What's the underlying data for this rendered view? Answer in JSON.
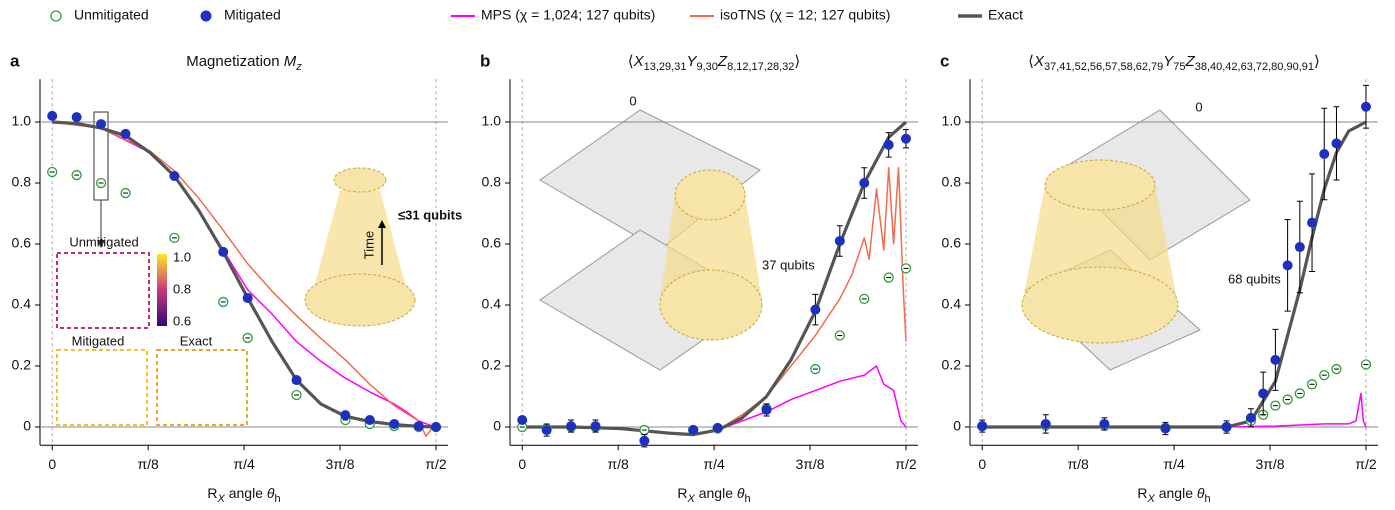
{
  "chart_data": [
    {
      "type": "line",
      "panel": "a",
      "title": [
        {
          "text": "Magnetization "
        },
        {
          "text": "M",
          "italic": true
        },
        {
          "text": "z",
          "sub": true,
          "italic": true
        }
      ],
      "xlabel": [
        {
          "text": "R"
        },
        {
          "text": "X",
          "sub": true,
          "italic": true
        },
        {
          "text": " angle "
        },
        {
          "text": "θ",
          "italic": true
        },
        {
          "text": "h",
          "sub": true
        }
      ],
      "xlim": [
        -0.05,
        1.62
      ],
      "ylim": [
        -0.06,
        1.14
      ],
      "xticks": [
        0,
        {
          "value": 0.3927,
          "label": "π/8"
        },
        {
          "value": 0.7854,
          "label": "π/4"
        },
        {
          "value": 1.1781,
          "label": "3π/8"
        },
        {
          "value": 1.5708,
          "label": "π/2"
        }
      ],
      "yticks": [
        0,
        0.2,
        0.4,
        0.6,
        0.8,
        {
          "value": 1,
          "label": "1.0"
        }
      ],
      "reference_lines": true,
      "grid": false,
      "annotations": [
        "≤31 qubits",
        "Time",
        "Unmitigated",
        "Mitigated",
        "Exact",
        "1.0",
        "0.8",
        "0.6"
      ],
      "series": [
        {
          "name": "Unmitigated",
          "color": "#2e9e3a",
          "marker": "open-circle",
          "x": [
            0,
            0.1,
            0.2,
            0.3,
            0.5,
            0.7,
            0.8,
            1.0,
            1.2,
            1.3,
            1.4,
            1.5,
            1.5708
          ],
          "values": [
            0.836,
            0.826,
            0.8,
            0.767,
            0.62,
            0.41,
            0.292,
            0.105,
            0.023,
            0.01,
            0.003,
            0,
            0
          ]
        },
        {
          "name": "Mitigated",
          "color": "#1f2fbf",
          "marker": "filled-circle",
          "x": [
            0,
            0.1,
            0.2,
            0.3,
            0.5,
            0.7,
            0.8,
            1.0,
            1.2,
            1.3,
            1.4,
            1.5,
            1.5708
          ],
          "values": [
            1.02,
            1.016,
            0.993,
            0.961,
            0.823,
            0.574,
            0.423,
            0.154,
            0.039,
            0.023,
            0.01,
            0.003,
            0
          ]
        },
        {
          "name": "MPS (χ = 1,024; 127 qubits)",
          "color": "#ff00ff",
          "marker": "line",
          "x": [
            0,
            0.2,
            0.4,
            0.5,
            0.6,
            0.7,
            0.8,
            0.9,
            1.0,
            1.1,
            1.2,
            1.3,
            1.4,
            1.45,
            1.5,
            1.55
          ],
          "values": [
            1,
            0.98,
            0.9,
            0.823,
            0.71,
            0.58,
            0.45,
            0.37,
            0.28,
            0.215,
            0.16,
            0.115,
            0.075,
            0.05,
            0.02,
            0.005
          ]
        },
        {
          "name": "isoTNS (χ = 12; 127 qubits)",
          "color": "#f26b4f",
          "marker": "line",
          "x": [
            0,
            0.2,
            0.4,
            0.5,
            0.6,
            0.7,
            0.8,
            0.9,
            1.0,
            1.1,
            1.2,
            1.3,
            1.4,
            1.45,
            1.5,
            1.53,
            1.56
          ],
          "values": [
            1,
            0.98,
            0.905,
            0.84,
            0.75,
            0.645,
            0.535,
            0.445,
            0.365,
            0.29,
            0.22,
            0.14,
            0.07,
            0.045,
            0.02,
            -0.03,
            0
          ]
        },
        {
          "name": "Exact",
          "color": "#555555",
          "marker": "line",
          "x": [
            0,
            0.1,
            0.2,
            0.3,
            0.4,
            0.5,
            0.6,
            0.7,
            0.8,
            0.9,
            1.0,
            1.1,
            1.2,
            1.3,
            1.4,
            1.5,
            1.5708
          ],
          "values": [
            1,
            0.995,
            0.98,
            0.955,
            0.9,
            0.823,
            0.71,
            0.574,
            0.423,
            0.28,
            0.154,
            0.075,
            0.035,
            0.018,
            0.008,
            0.002,
            0
          ]
        }
      ]
    },
    {
      "type": "line",
      "panel": "b",
      "title": [
        {
          "text": "⟨"
        },
        {
          "text": "X",
          "italic": true
        },
        {
          "text": "13,29,31",
          "sub": true
        },
        {
          "text": "Y",
          "italic": true
        },
        {
          "text": "9,30",
          "sub": true
        },
        {
          "text": "Z",
          "italic": true
        },
        {
          "text": "8,12,17,28,32",
          "sub": true
        },
        {
          "text": "⟩"
        }
      ],
      "xlabel": [
        {
          "text": "R"
        },
        {
          "text": "X",
          "sub": true,
          "italic": true
        },
        {
          "text": " angle "
        },
        {
          "text": "θ",
          "italic": true
        },
        {
          "text": "h",
          "sub": true
        }
      ],
      "xlim": [
        -0.05,
        1.62
      ],
      "ylim": [
        -0.06,
        1.14
      ],
      "xticks": [
        0,
        {
          "value": 0.3927,
          "label": "π/8"
        },
        {
          "value": 0.7854,
          "label": "π/4"
        },
        {
          "value": 1.1781,
          "label": "3π/8"
        },
        {
          "value": 1.5708,
          "label": "π/2"
        }
      ],
      "yticks": [
        0,
        0.2,
        0.4,
        0.6,
        0.8,
        {
          "value": 1,
          "label": "1.0"
        }
      ],
      "reference_lines": true,
      "grid": false,
      "annotations": [
        "0",
        "37 qubits"
      ],
      "series": [
        {
          "name": "Unmitigated",
          "color": "#2e9e3a",
          "marker": "open-circle",
          "x": [
            0,
            0.1,
            0.2,
            0.3,
            0.5,
            0.7,
            0.8,
            1.0,
            1.2,
            1.3,
            1.4,
            1.5,
            1.5708
          ],
          "values": [
            0,
            -0.005,
            0,
            0,
            -0.01,
            -0.01,
            -0.005,
            0.06,
            0.19,
            0.3,
            0.42,
            0.49,
            0.52
          ]
        },
        {
          "name": "Mitigated",
          "color": "#1f2fbf",
          "marker": "filled-circle",
          "x": [
            0,
            0.1,
            0.2,
            0.3,
            0.5,
            0.7,
            0.8,
            1.0,
            1.2,
            1.3,
            1.4,
            1.5,
            1.5708
          ],
          "values": [
            0.023,
            -0.01,
            0.003,
            0.003,
            -0.045,
            -0.01,
            -0.003,
            0.056,
            0.385,
            0.61,
            0.8,
            0.925,
            0.945
          ],
          "errors": [
            0.01,
            0.02,
            0.02,
            0.02,
            0.02,
            0.01,
            0.01,
            0.02,
            0.05,
            0.05,
            0.05,
            0.04,
            0.03
          ]
        },
        {
          "name": "MPS (χ = 1,024; 127 qubits)",
          "color": "#ff00ff",
          "marker": "line",
          "x": [
            0,
            0.2,
            0.4,
            0.6,
            0.7,
            0.8,
            0.9,
            1.0,
            1.1,
            1.2,
            1.3,
            1.4,
            1.45,
            1.48,
            1.52,
            1.55,
            1.5708
          ],
          "values": [
            0,
            0,
            -0.005,
            -0.02,
            -0.025,
            -0.01,
            0.02,
            0.05,
            0.09,
            0.12,
            0.15,
            0.17,
            0.2,
            0.14,
            0.12,
            0.02,
            0
          ]
        },
        {
          "name": "isoTNS (χ = 12; 127 qubits)",
          "color": "#f26b4f",
          "marker": "line",
          "x": [
            0.8,
            0.9,
            1.0,
            1.1,
            1.2,
            1.3,
            1.35,
            1.4,
            1.42,
            1.45,
            1.48,
            1.5,
            1.52,
            1.54,
            1.56,
            1.5708
          ],
          "values": [
            -0.01,
            0.04,
            0.1,
            0.2,
            0.3,
            0.42,
            0.5,
            0.62,
            0.55,
            0.78,
            0.58,
            0.85,
            0.6,
            0.85,
            0.45,
            0.28
          ]
        },
        {
          "name": "Exact",
          "color": "#555555",
          "marker": "line",
          "x": [
            0,
            0.2,
            0.4,
            0.6,
            0.7,
            0.8,
            0.9,
            1.0,
            1.1,
            1.2,
            1.3,
            1.4,
            1.5,
            1.5708
          ],
          "values": [
            0,
            0,
            -0.005,
            -0.02,
            -0.025,
            -0.01,
            0.03,
            0.1,
            0.22,
            0.38,
            0.6,
            0.8,
            0.95,
            1
          ]
        }
      ]
    },
    {
      "type": "line",
      "panel": "c",
      "title": [
        {
          "text": "⟨"
        },
        {
          "text": "X",
          "italic": true
        },
        {
          "text": "37,41,52,56,57,58,62,79",
          "sub": true
        },
        {
          "text": "Y",
          "italic": true
        },
        {
          "text": "75",
          "sub": true
        },
        {
          "text": "Z",
          "italic": true
        },
        {
          "text": "38,40,42,63,72,80,90,91",
          "sub": true
        },
        {
          "text": "⟩"
        }
      ],
      "xlabel": [
        {
          "text": "R"
        },
        {
          "text": "X",
          "sub": true,
          "italic": true
        },
        {
          "text": " angle "
        },
        {
          "text": "θ",
          "italic": true
        },
        {
          "text": "h",
          "sub": true
        }
      ],
      "xlim": [
        -0.05,
        1.62
      ],
      "ylim": [
        -0.06,
        1.14
      ],
      "xticks": [
        0,
        {
          "value": 0.3927,
          "label": "π/8"
        },
        {
          "value": 0.7854,
          "label": "π/4"
        },
        {
          "value": 1.1781,
          "label": "3π/8"
        },
        {
          "value": 1.5708,
          "label": "π/2"
        }
      ],
      "yticks": [
        0,
        0.2,
        0.4,
        0.6,
        0.8,
        {
          "value": 1,
          "label": "1.0"
        }
      ],
      "reference_lines": true,
      "grid": false,
      "annotations": [
        "0",
        "68 qubits"
      ],
      "series": [
        {
          "name": "Unmitigated",
          "color": "#2e9e3a",
          "marker": "open-circle",
          "x": [
            0,
            0.26,
            0.5,
            0.75,
            1.0,
            1.1,
            1.15,
            1.2,
            1.25,
            1.3,
            1.35,
            1.4,
            1.45,
            1.5708
          ],
          "values": [
            0.003,
            0.005,
            0.005,
            -0.003,
            0,
            0.02,
            0.04,
            0.07,
            0.09,
            0.11,
            0.14,
            0.17,
            0.19,
            0.205
          ]
        },
        {
          "name": "Mitigated",
          "color": "#1f2fbf",
          "marker": "filled-circle",
          "x": [
            0,
            0.26,
            0.5,
            0.75,
            1.0,
            1.1,
            1.15,
            1.2,
            1.25,
            1.3,
            1.35,
            1.4,
            1.45,
            1.5708
          ],
          "values": [
            0.003,
            0.01,
            0.01,
            -0.005,
            0,
            0.03,
            0.11,
            0.22,
            0.53,
            0.59,
            0.67,
            0.895,
            0.93,
            1.05
          ],
          "errors": [
            0.02,
            0.03,
            0.02,
            0.02,
            0.02,
            0.03,
            0.07,
            0.1,
            0.15,
            0.15,
            0.16,
            0.15,
            0.12,
            0.07
          ]
        },
        {
          "name": "MPS (χ = 1,024; 127 qubits)",
          "color": "#ff00ff",
          "marker": "line",
          "x": [
            0,
            1.0,
            1.2,
            1.4,
            1.5,
            1.53,
            1.55,
            1.56,
            1.5708
          ],
          "values": [
            0,
            0,
            0.003,
            0.01,
            0.01,
            0.02,
            0.11,
            0.02,
            0
          ]
        },
        {
          "name": "Exact",
          "color": "#555555",
          "marker": "line",
          "x": [
            0,
            1.0,
            1.1,
            1.2,
            1.3,
            1.35,
            1.4,
            1.45,
            1.5,
            1.5708
          ],
          "values": [
            0,
            0,
            0.02,
            0.15,
            0.45,
            0.62,
            0.78,
            0.9,
            0.97,
            1
          ]
        }
      ]
    }
  ]
}
